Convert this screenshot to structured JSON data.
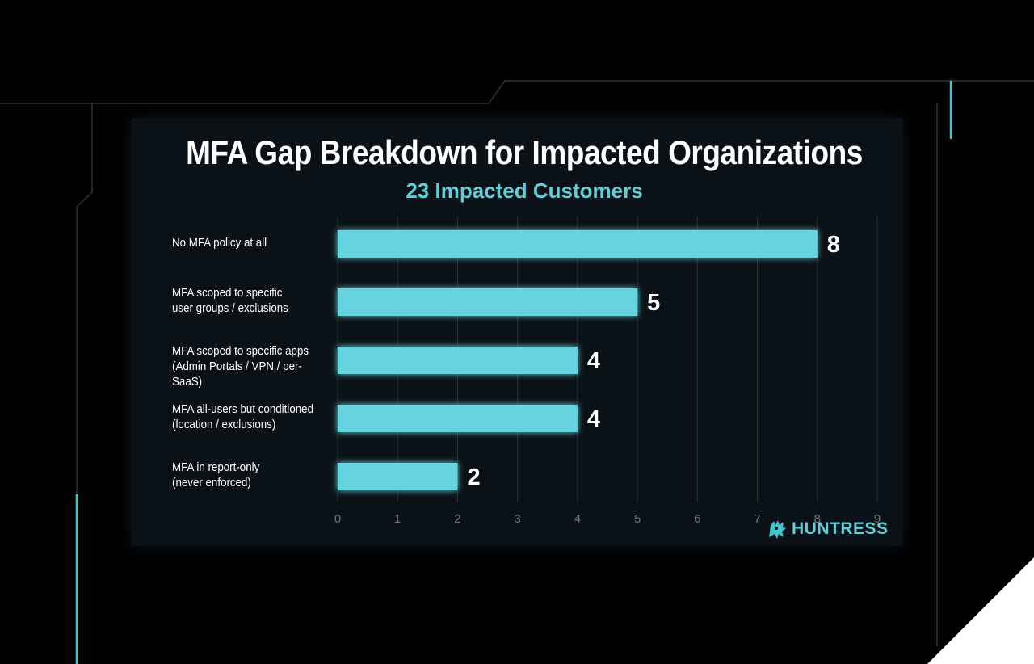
{
  "colors": {
    "background": "#000000",
    "panel": "#0b1217",
    "bar": "#66d4df",
    "accent": "#3ec6d3",
    "text": "#ffffff",
    "grid": "#2a3238",
    "tick": "#6e7479"
  },
  "brand": {
    "logo_icon": "huntress-logo-icon",
    "name": "HUNTRESS"
  },
  "chart_data": {
    "type": "bar",
    "orientation": "horizontal",
    "title": "MFA Gap Breakdown for Impacted Organizations",
    "subtitle": "23 Impacted Customers",
    "categories": [
      "No MFA policy at all",
      "MFA scoped to specific\nuser groups / exclusions",
      "MFA scoped to specific apps\n(Admin Portals / VPN / per-SaaS)",
      "MFA all-users but conditioned\n(location / exclusions)",
      "MFA in report-only\n(never enforced)"
    ],
    "values": [
      8,
      5,
      4,
      4,
      2
    ],
    "data_labels": [
      "8",
      "5",
      "4",
      "4",
      "2"
    ],
    "xlim": [
      0,
      9
    ],
    "xticks": [
      "0",
      "1",
      "2",
      "3",
      "4",
      "5",
      "6",
      "7",
      "8",
      "9"
    ],
    "grid": true,
    "legend": "none"
  }
}
